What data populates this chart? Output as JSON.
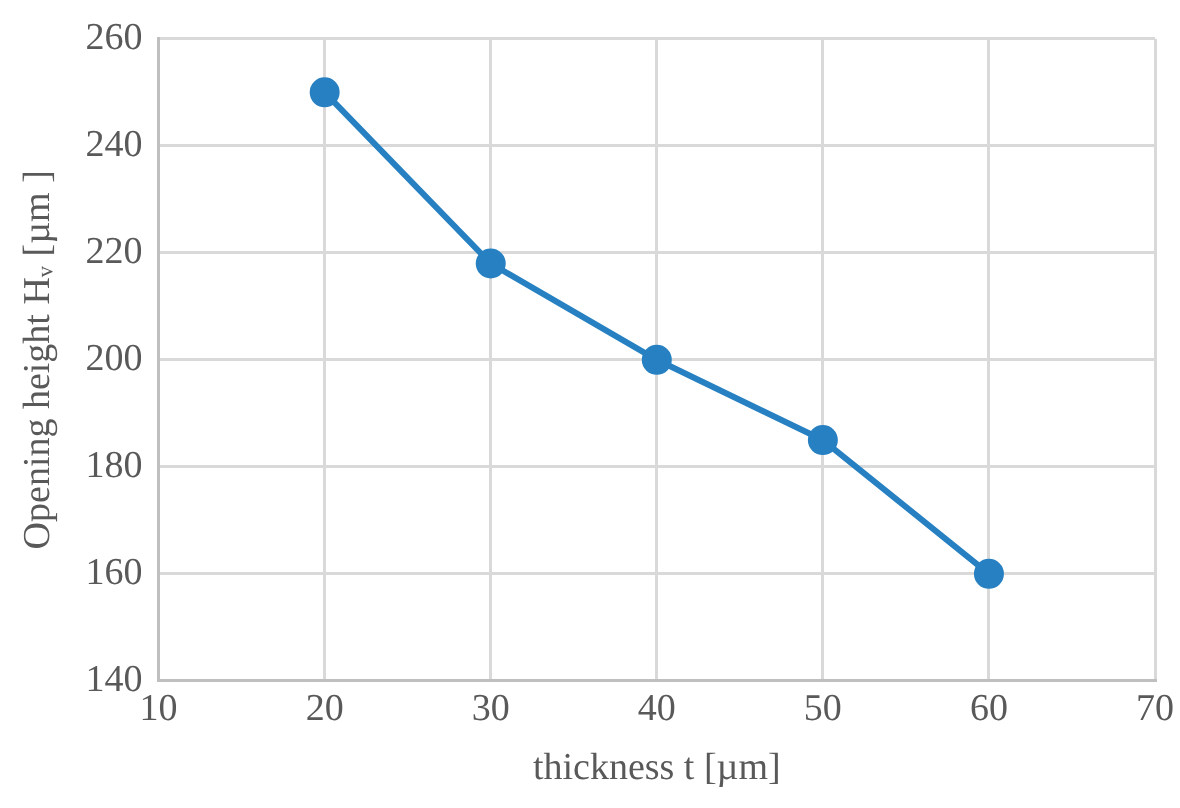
{
  "chart_data": {
    "type": "line",
    "xlabel": "thickness t [µm]",
    "ylabel": "Opening height Hᵥ [µm ]",
    "x": [
      20,
      30,
      40,
      50,
      60
    ],
    "series": [
      {
        "color": "#2680c2",
        "values": [
          250,
          218,
          200,
          185,
          160
        ]
      }
    ],
    "xlim": [
      10,
      70
    ],
    "xticks": [
      10,
      20,
      30,
      40,
      50,
      60,
      70
    ],
    "ylim": [
      140,
      260
    ],
    "yticks": [
      140,
      160,
      180,
      200,
      220,
      240,
      260
    ],
    "grid": true,
    "legend": false,
    "marker": "circle",
    "line_style": "solid"
  }
}
